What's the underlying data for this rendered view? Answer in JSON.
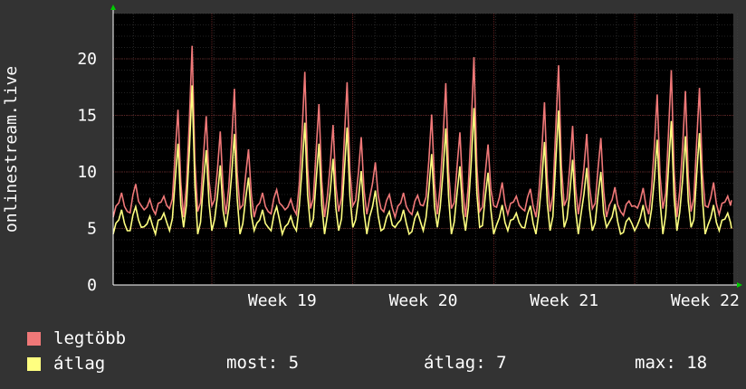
{
  "chart_data": {
    "type": "line",
    "title": "",
    "xlabel": "",
    "ylabel": "onlinestream.live",
    "ylim": [
      0,
      24
    ],
    "yticks": [
      0,
      5,
      10,
      15,
      20
    ],
    "xrange_weeks": [
      18.3,
      22.7
    ],
    "xticks": [
      {
        "label": "Week 19",
        "week": 19
      },
      {
        "label": "Week 20",
        "week": 20
      },
      {
        "label": "Week 21",
        "week": 21
      },
      {
        "label": "Week 22",
        "week": 22
      }
    ],
    "grid": true,
    "background": "#000000",
    "series": [
      {
        "name": "legtöbb",
        "color": "#f07878",
        "daily_peaks": [
          8,
          9,
          7.5,
          8,
          15.5,
          21,
          15,
          13.5,
          17.5,
          12,
          8,
          8.5,
          7.5,
          19,
          16,
          14,
          18,
          13,
          11,
          8,
          8,
          8,
          15,
          18,
          13.5,
          20,
          12.5,
          9,
          8,
          8.5,
          16,
          19.5,
          14,
          13.5,
          13,
          8.5,
          7.5,
          8.5,
          17,
          19,
          17,
          17.5,
          9,
          8
        ],
        "base": 6.5
      },
      {
        "name": "átlag",
        "color": "#ffff80",
        "daily_peaks": [
          6.5,
          7,
          6,
          6.5,
          12.5,
          17.5,
          12,
          10.5,
          13.5,
          9.5,
          6.5,
          7,
          6,
          14.5,
          12.5,
          11,
          14,
          10,
          8.5,
          6.5,
          6.5,
          6.5,
          11.5,
          14,
          10.5,
          15.5,
          10,
          7,
          6.5,
          7,
          12.5,
          15.5,
          11,
          10.5,
          10,
          7,
          6,
          7,
          13,
          14.5,
          13,
          13.5,
          7,
          6.5
        ],
        "base": 5
      }
    ]
  },
  "legend": {
    "items": [
      {
        "label": "legtöbb",
        "color": "#f07878"
      },
      {
        "label": "átlag",
        "color": "#ffff80"
      }
    ]
  },
  "stats": {
    "now": "most: 5",
    "avg": "átlag: 7",
    "max": "max: 18"
  }
}
